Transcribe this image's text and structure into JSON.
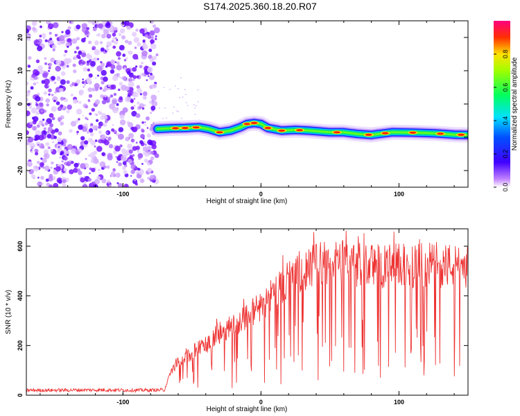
{
  "title": "S174.2025.360.18.20.R07",
  "chart_data": [
    {
      "type": "heatmap",
      "xlabel": "Height of straight line (km)",
      "ylabel": "Frequency (Hz)",
      "xlim": [
        -170,
        150
      ],
      "ylim": [
        -25,
        25
      ],
      "xticks": [
        -100,
        0,
        100
      ],
      "xtick_labels": [
        "-100",
        "0",
        "100"
      ],
      "yticks": [
        -20,
        -10,
        0,
        10,
        20
      ],
      "ytick_labels": [
        "-20",
        "-10",
        "0",
        "10",
        "20"
      ],
      "noise_region_x": [
        -170,
        -75
      ],
      "ridge": {
        "x": [
          -75,
          -65,
          -55,
          -45,
          -38,
          -30,
          -22,
          -15,
          -10,
          -5,
          0,
          5,
          15,
          25,
          35,
          50,
          60,
          70,
          80,
          95,
          110,
          125,
          140,
          150
        ],
        "y": [
          -7.5,
          -7.3,
          -7.2,
          -7.0,
          -7.5,
          -8.5,
          -8.0,
          -7.0,
          -6.0,
          -5.7,
          -6.0,
          -7.2,
          -8.0,
          -7.8,
          -8.0,
          -8.5,
          -8.5,
          -9.0,
          -9.3,
          -8.5,
          -8.6,
          -8.8,
          -9.2,
          -9.3
        ]
      },
      "colorbar": {
        "label": "Normalized spectral amplitude",
        "ticks": [
          0.0,
          0.2,
          0.4,
          0.6,
          0.8
        ],
        "tick_labels": [
          "0.0",
          "0.2",
          "0.4",
          "0.6",
          "0.8"
        ],
        "range": [
          0,
          1
        ]
      }
    },
    {
      "type": "line",
      "xlabel": "Height of straight line (km)",
      "ylabel": "SNR (10 * v/v)",
      "xlim": [
        -170,
        150
      ],
      "ylim": [
        0,
        670
      ],
      "xticks": [
        -100,
        0,
        100
      ],
      "xtick_labels": [
        "-100",
        "0",
        "100"
      ],
      "yticks": [
        0,
        200,
        400,
        600
      ],
      "ytick_labels": [
        "0",
        "200",
        "400",
        "600"
      ],
      "color": "#ee3333",
      "series": [
        {
          "name": "SNR",
          "x": [
            -170,
            -150,
            -130,
            -110,
            -90,
            -70,
            -65,
            -60,
            -55,
            -50,
            -45,
            -40,
            -35,
            -30,
            -25,
            -20,
            -15,
            -10,
            -5,
            0,
            5,
            10,
            15,
            20,
            25,
            30,
            35,
            40,
            45,
            50,
            55,
            60,
            65,
            70,
            75,
            80,
            85,
            90,
            95,
            100,
            105,
            110,
            115,
            120,
            125,
            130,
            135,
            140,
            145,
            150
          ],
          "values": [
            20,
            20,
            21,
            21,
            20,
            21,
            100,
            130,
            150,
            170,
            190,
            200,
            230,
            250,
            270,
            280,
            300,
            320,
            340,
            360,
            390,
            420,
            440,
            470,
            490,
            500,
            510,
            530,
            530,
            540,
            530,
            545,
            530,
            525,
            530,
            525,
            520,
            515,
            520,
            525,
            520,
            515,
            525,
            520,
            530,
            520,
            525,
            515,
            520,
            520
          ]
        }
      ]
    }
  ]
}
